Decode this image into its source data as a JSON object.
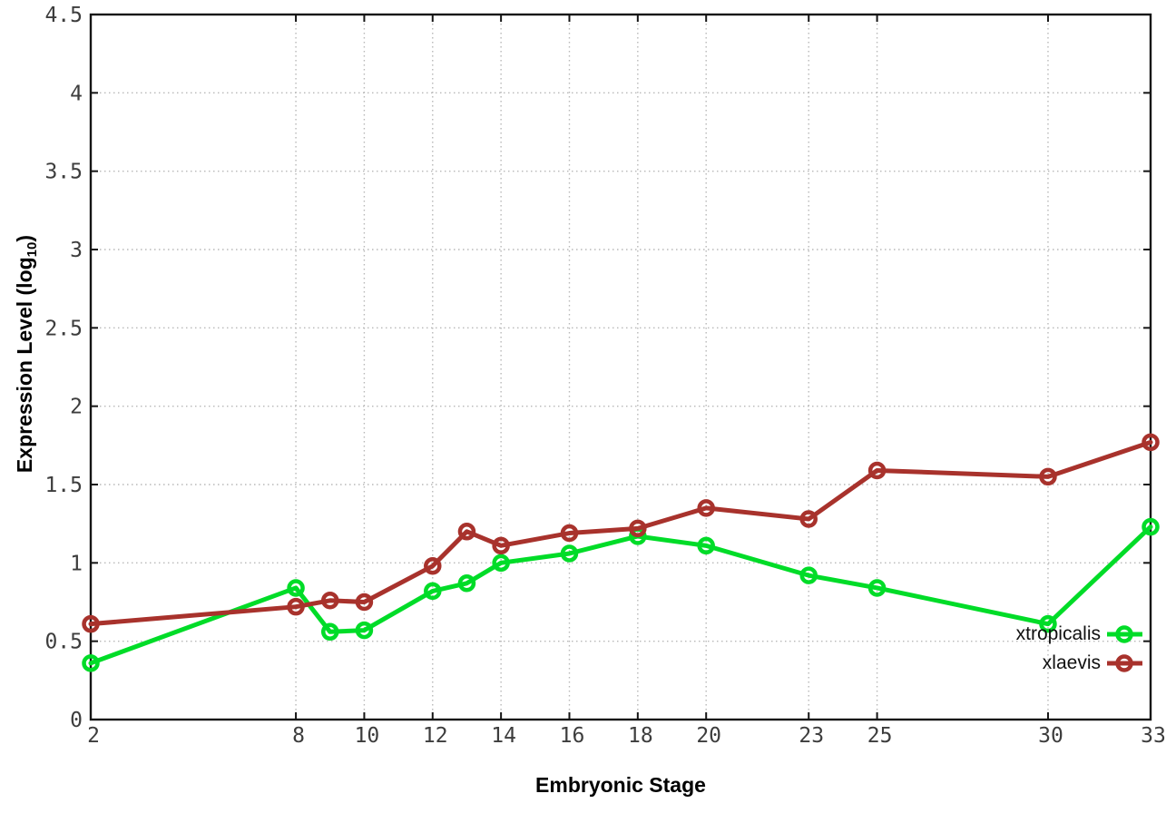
{
  "chart_data": {
    "type": "line",
    "title": "",
    "xlabel": "Embryonic Stage",
    "ylabel": "Expression Level (log10)",
    "ylabel_main": "Expression Level (log",
    "ylabel_sub": "10",
    "ylabel_close": ")",
    "x": [
      2,
      8,
      9,
      10,
      12,
      13,
      14,
      16,
      18,
      20,
      23,
      25,
      30,
      33
    ],
    "xlim": [
      2,
      33
    ],
    "ylim": [
      0,
      4.5
    ],
    "xticks": [
      2,
      8,
      10,
      12,
      14,
      16,
      18,
      20,
      23,
      25,
      30,
      33
    ],
    "xtick_labels": [
      "2",
      "8",
      "10",
      "12",
      "14",
      "16",
      "18",
      "20",
      "23",
      "25",
      "30",
      "33"
    ],
    "yticks": [
      0,
      0.5,
      1,
      1.5,
      2,
      2.5,
      3,
      3.5,
      4,
      4.5
    ],
    "ytick_labels": [
      "0",
      "0.5",
      "1",
      "1.5",
      "2",
      "2.5",
      "3",
      "3.5",
      "4",
      "4.5"
    ],
    "grid": true,
    "grid_style": "dotted",
    "legend_position": "inside-right-lower",
    "series": [
      {
        "name": "xtropicalis",
        "color": "#00dc28",
        "marker": "open-circle",
        "values": [
          0.36,
          0.84,
          0.56,
          0.57,
          0.82,
          0.87,
          1.0,
          1.06,
          1.17,
          1.11,
          0.92,
          0.84,
          0.61,
          1.23
        ]
      },
      {
        "name": "xlaevis",
        "color": "#a8322c",
        "marker": "open-circle",
        "values": [
          0.61,
          0.72,
          0.76,
          0.75,
          0.98,
          1.2,
          1.11,
          1.19,
          1.22,
          1.35,
          1.28,
          1.59,
          1.55,
          1.77
        ]
      }
    ],
    "colors": {
      "border": "#151515",
      "grid": "#b8b8b8",
      "tick_text": "#3d3d3d",
      "background": "#ffffff"
    }
  }
}
